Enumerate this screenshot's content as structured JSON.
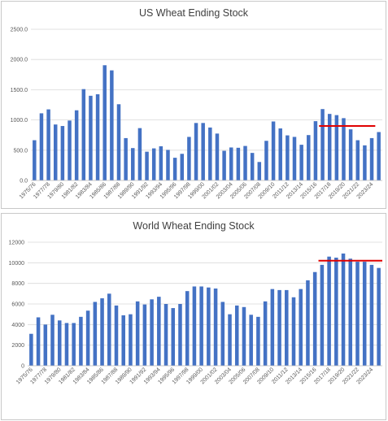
{
  "chart_data": [
    {
      "type": "bar",
      "title": "US Wheat Ending Stock",
      "xlabel": "",
      "ylabel": "",
      "ylim": [
        0,
        2500
      ],
      "yticks": [
        "0.0",
        "500.0",
        "1000.0",
        "1500.0",
        "2000.0",
        "2500.0"
      ],
      "grid": true,
      "bar_color": "#4472c4",
      "reference_line": {
        "y": 900,
        "from": "2016/17",
        "to": "2023/24",
        "color": "#e00000"
      },
      "categories": [
        "1975/76",
        "1976/77",
        "1977/78",
        "1978/79",
        "1979/80",
        "1980/81",
        "1981/82",
        "1982/83",
        "1983/84",
        "1984/85",
        "1985/86",
        "1986/87",
        "1987/88",
        "1988/89",
        "1989/90",
        "1990/91",
        "1991/92",
        "1992/93",
        "1993/94",
        "1994/95",
        "1995/96",
        "1996/97",
        "1997/98",
        "1998/99",
        "1999/00",
        "2000/01",
        "2001/02",
        "2002/03",
        "2003/04",
        "2004/05",
        "2005/06",
        "2006/07",
        "2007/08",
        "2008/09",
        "2009/10",
        "2010/11",
        "2011/12",
        "2012/13",
        "2013/14",
        "2014/15",
        "2015/16",
        "2016/17",
        "2017/18",
        "2018/19",
        "2019/20",
        "2020/21",
        "2021/22",
        "2022/23",
        "2023/24",
        "2024/25"
      ],
      "xtick_labels": [
        "1975/76",
        "1977/78",
        "1979/80",
        "1981/82",
        "1983/84",
        "1985/86",
        "1987/88",
        "1989/90",
        "1991/92",
        "1993/94",
        "1995/96",
        "1997/98",
        "1999/00",
        "2001/02",
        "2003/04",
        "2005/06",
        "2007/08",
        "2009/10",
        "2011/12",
        "2013/14",
        "2015/16",
        "2017/18",
        "2019/20",
        "2021/22",
        "2023/24"
      ],
      "values": [
        665,
        1110,
        1175,
        925,
        900,
        990,
        1160,
        1510,
        1400,
        1425,
        1905,
        1820,
        1260,
        700,
        535,
        865,
        475,
        530,
        565,
        505,
        375,
        440,
        720,
        950,
        950,
        875,
        775,
        490,
        545,
        540,
        570,
        455,
        305,
        655,
        975,
        860,
        745,
        720,
        590,
        750,
        980,
        1180,
        1100,
        1080,
        1030,
        845,
        665,
        580,
        700,
        800
      ]
    },
    {
      "type": "bar",
      "title": "World Wheat Ending Stock",
      "xlabel": "",
      "ylabel": "",
      "ylim": [
        0,
        12000
      ],
      "yticks": [
        "0",
        "2000",
        "4000",
        "6000",
        "8000",
        "10000",
        "12000"
      ],
      "grid": true,
      "bar_color": "#4472c4",
      "reference_line": {
        "y": 10200,
        "from": "2016/17",
        "to": "2024/25",
        "color": "#e00000"
      },
      "categories": [
        "1975/76",
        "1976/77",
        "1977/78",
        "1978/79",
        "1979/80",
        "1980/81",
        "1981/82",
        "1982/83",
        "1983/84",
        "1984/85",
        "1985/86",
        "1986/87",
        "1987/88",
        "1988/89",
        "1989/90",
        "1990/91",
        "1991/92",
        "1992/93",
        "1993/94",
        "1994/95",
        "1995/96",
        "1996/97",
        "1997/98",
        "1998/99",
        "1999/00",
        "2000/01",
        "2001/02",
        "2002/03",
        "2003/04",
        "2004/05",
        "2005/06",
        "2006/07",
        "2007/08",
        "2008/09",
        "2009/10",
        "2010/11",
        "2011/12",
        "2012/13",
        "2013/14",
        "2014/15",
        "2015/16",
        "2016/17",
        "2017/18",
        "2018/19",
        "2019/20",
        "2020/21",
        "2021/22",
        "2022/23",
        "2023/24",
        "2024/25"
      ],
      "xtick_labels": [
        "1975/76",
        "1977/78",
        "1979/80",
        "1981/82",
        "1983/84",
        "1985/86",
        "1987/88",
        "1989/90",
        "1991/92",
        "1993/94",
        "1995/96",
        "1997/98",
        "1999/00",
        "2001/02",
        "2003/04",
        "2005/06",
        "2007/08",
        "2009/10",
        "2011/12",
        "2013/14",
        "2015/16",
        "2017/18",
        "2019/20",
        "2021/22",
        "2023/24"
      ],
      "values": [
        3100,
        4700,
        4000,
        4950,
        4400,
        4150,
        4150,
        4750,
        5350,
        6200,
        6550,
        7000,
        5850,
        4900,
        5000,
        6250,
        5950,
        6450,
        6700,
        6000,
        5600,
        6000,
        7250,
        7700,
        7700,
        7600,
        7500,
        6200,
        5000,
        5850,
        5700,
        4950,
        4750,
        6250,
        7450,
        7350,
        7350,
        6650,
        7450,
        8300,
        9100,
        9800,
        10600,
        10500,
        10900,
        10400,
        10100,
        10100,
        9800,
        9500
      ]
    }
  ]
}
